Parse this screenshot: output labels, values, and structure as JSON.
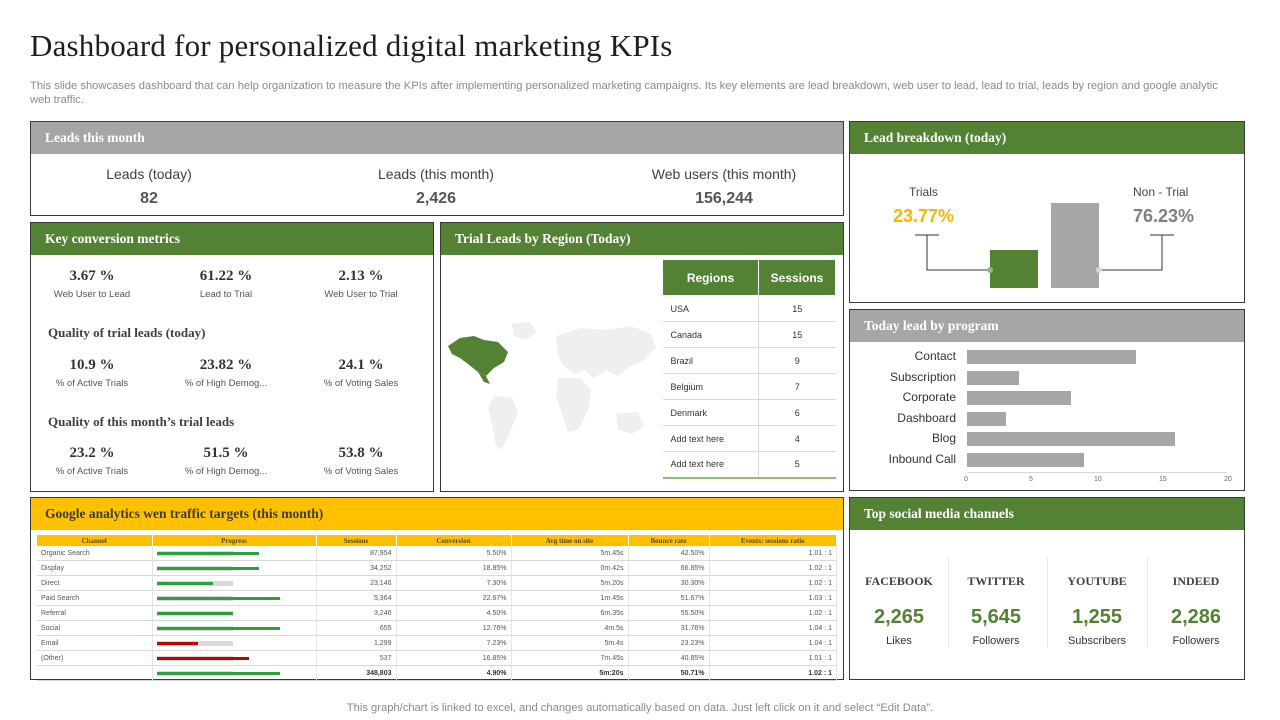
{
  "title": "Dashboard for personalized digital marketing KPIs",
  "subtitle": "This slide showcases dashboard that can help organization to measure the KPIs after implementing personalized marketing campaigns. Its key elements are lead breakdown, web user to lead, lead to trial, leads by region and google analytic web traffic.",
  "footer": "This graph/chart is linked to excel,  and changes automatically based on data. Just left click on it and select “Edit Data”.",
  "colors": {
    "green": "#548235",
    "gray": "#a6a6a6",
    "yellow": "#ffc000",
    "accent_yellow": "#f2b705",
    "red": "#c00000",
    "bar_green": "#2e9e3f"
  },
  "leads": {
    "title": "Leads this month",
    "items": [
      {
        "label": "Leads (today)",
        "value": "82"
      },
      {
        "label": "Leads (this month)",
        "value": "2,426"
      },
      {
        "label": "Web users (this month)",
        "value": "156,244"
      }
    ]
  },
  "conversion": {
    "title": "Key conversion metrics",
    "row1": [
      {
        "value": "3.67 %",
        "label": "Web User to Lead"
      },
      {
        "value": "61.22 %",
        "label": "Lead to Trial"
      },
      {
        "value": "2.13 %",
        "label": "Web User to Trial"
      }
    ],
    "quality_today_title": "Quality of trial leads (today)",
    "row2": [
      {
        "value": "10.9 %",
        "label": "% of Active Trials"
      },
      {
        "value": "23.82 %",
        "label": "% of High Demog..."
      },
      {
        "value": "24.1 %",
        "label": "% of Voting Sales"
      }
    ],
    "quality_month_title": "Quality of this month’s  trial leads",
    "row3": [
      {
        "value": "23.2 %",
        "label": "% of Active Trials"
      },
      {
        "value": "51.5 %",
        "label": "% of High Demog..."
      },
      {
        "value": "53.8 %",
        "label": "% of Voting Sales"
      }
    ]
  },
  "region": {
    "title": "Trial Leads  by  Region (Today)",
    "headers": [
      "Regions",
      "Sessions"
    ],
    "rows": [
      [
        "USA",
        "15"
      ],
      [
        "Canada",
        "15"
      ],
      [
        "Brazil",
        "9"
      ],
      [
        "Belgium",
        "7"
      ],
      [
        "Denmark",
        "6"
      ],
      [
        "Add text here",
        "4"
      ],
      [
        "Add text here",
        "5"
      ]
    ]
  },
  "traffic": {
    "title": "Google analytics wen traffic targets (this month)",
    "headers": [
      "Channel",
      "Progress",
      "Sessions",
      "Conversion",
      "Avg time on site",
      "Bounce rate",
      "Events: sessions ratio"
    ],
    "rows": [
      {
        "channel": "Organic Search",
        "progress": 1.35,
        "color": "green",
        "sessions": "87,954",
        "conversion": "5.50%",
        "avg": "5m.45s",
        "bounce": "42.50%",
        "ratio": "1.01 : 1"
      },
      {
        "channel": "Display",
        "progress": 1.35,
        "color": "green",
        "sessions": "34,252",
        "conversion": "18.85%",
        "avg": "0m.42s",
        "bounce": "66.85%",
        "ratio": "1.02 : 1"
      },
      {
        "channel": "Direct",
        "progress": 0.74,
        "color": "green",
        "sessions": "23,146",
        "conversion": "7.30%",
        "avg": "5m.20s",
        "bounce": "30.30%",
        "ratio": "1.02 : 1"
      },
      {
        "channel": "Paid Search",
        "progress": 1.62,
        "color": "green",
        "sessions": "5,364",
        "conversion": "22.67%",
        "avg": "1m.45s",
        "bounce": "51.67%",
        "ratio": "1.03 : 1"
      },
      {
        "channel": "Referral",
        "progress": 1.0,
        "color": "green",
        "sessions": "3,246",
        "conversion": "4.50%",
        "avg": "6m.35s",
        "bounce": "55.50%",
        "ratio": "1.02 : 1"
      },
      {
        "channel": "Social",
        "progress": 1.62,
        "color": "green",
        "sessions": "655",
        "conversion": "12.76%",
        "avg": "4m.5s",
        "bounce": "31.76%",
        "ratio": "1.04 : 1"
      },
      {
        "channel": "Email",
        "progress": 0.55,
        "color": "red",
        "sessions": "1,299",
        "conversion": "7.23%",
        "avg": "5m.4s",
        "bounce": "23.23%",
        "ratio": "1.04 : 1"
      },
      {
        "channel": "(Other)",
        "progress": 1.22,
        "color": "red",
        "sessions": "537",
        "conversion": "16.85%",
        "avg": "7m.45s",
        "bounce": "40.85%",
        "ratio": "1.01 : 1"
      }
    ],
    "total": {
      "channel": "",
      "progress": 1.62,
      "color": "green",
      "sessions": "348,803",
      "conversion": "4.90%",
      "avg": "5m:20s",
      "bounce": "50.71%",
      "ratio": "1.02 : 1"
    }
  },
  "lead_breakdown": {
    "title": "Lead breakdown (today)",
    "trials_label": "Trials",
    "trials_pct": "23.77%",
    "nontrial_label": "Non - Trial",
    "nontrial_pct": "76.23%"
  },
  "program": {
    "title": "Today lead by program",
    "chart_data": {
      "type": "bar",
      "orientation": "horizontal",
      "categories": [
        "Contact",
        "Subscription",
        "Corporate",
        "Dashboard",
        "Blog",
        "Inbound Call"
      ],
      "values": [
        13,
        4,
        8,
        3,
        16,
        9
      ],
      "xlim": [
        0,
        20
      ],
      "xticks": [
        "0",
        "5",
        "10",
        "15",
        "20"
      ]
    }
  },
  "social": {
    "title": "Top social media channels",
    "channels": [
      {
        "name": "FACEBOOK",
        "value": "2,265",
        "unit": "Likes"
      },
      {
        "name": "TWITTER",
        "value": "5,645",
        "unit": "Followers"
      },
      {
        "name": "YOUTUBE",
        "value": "1,255",
        "unit": "Subscribers"
      },
      {
        "name": "INDEED",
        "value": "2,286",
        "unit": "Followers"
      }
    ]
  }
}
